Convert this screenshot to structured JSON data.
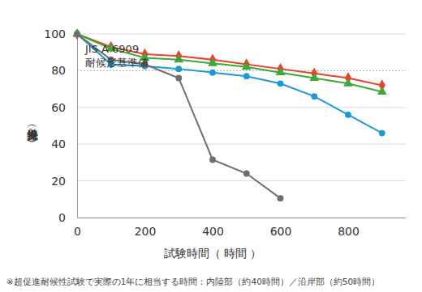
{
  "chart_data": {
    "type": "line",
    "x_label": "試験時間（ 時間 ）",
    "y_label": "光沢保持率（％）",
    "note": "※超促進耐候性試験で実際の1年に相当する時間：内陸部（約40時間）／沿岸部（約50時間）",
    "annotation": {
      "text": [
        "JIS A 6909",
        "耐候形基準値"
      ],
      "value": 80
    },
    "x": [
      0,
      100,
      200,
      300,
      400,
      500,
      600,
      700,
      800,
      900
    ],
    "series": [
      {
        "color": "#e8432b",
        "marker": "diamond",
        "values": [
          100,
          93,
          89,
          88,
          86,
          83.5,
          81,
          78.5,
          76,
          72
        ]
      },
      {
        "color": "#3ba935",
        "marker": "triangle",
        "values": [
          100,
          92,
          87,
          86,
          84,
          82,
          79,
          76,
          73,
          68.5
        ]
      },
      {
        "color": "#1d9ad6",
        "marker": "circle",
        "values": [
          100,
          83.5,
          82.5,
          81,
          79,
          77,
          73,
          66,
          56,
          46
        ]
      },
      {
        "color": "#6e6e6e",
        "marker": "circle",
        "values": [
          100,
          86,
          83.5,
          76,
          31.5,
          24,
          10.5,
          null,
          null,
          null
        ]
      }
    ],
    "xlim": [
      0,
      970
    ],
    "xticks": [
      0,
      200,
      400,
      600,
      800
    ],
    "ylim": [
      0,
      100
    ],
    "yticks": [
      0,
      20,
      40,
      60,
      80,
      100
    ],
    "grid": true
  }
}
